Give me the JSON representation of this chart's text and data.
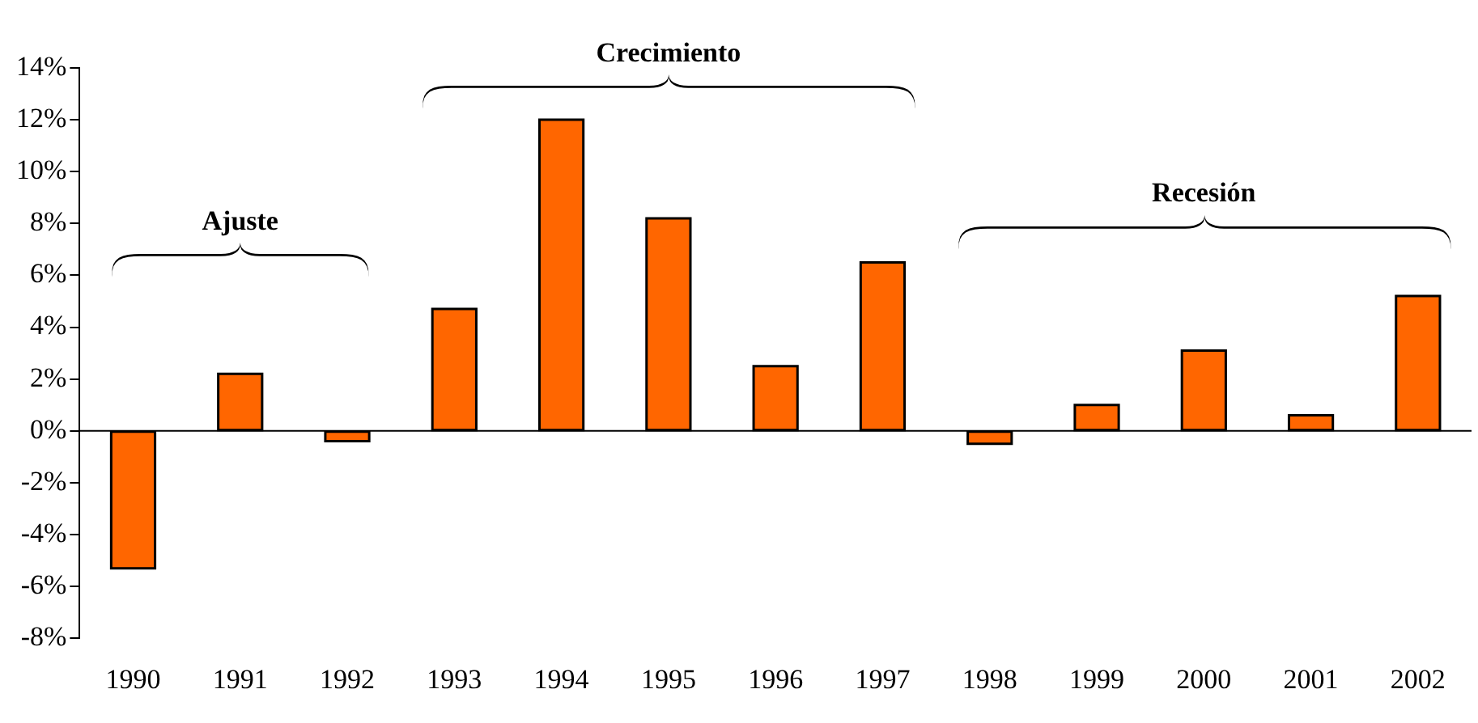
{
  "chart_data": {
    "type": "bar",
    "categories": [
      "1990",
      "1991",
      "1992",
      "1993",
      "1994",
      "1995",
      "1996",
      "1997",
      "1998",
      "1999",
      "2000",
      "2001",
      "2002"
    ],
    "values": [
      -5.3,
      2.2,
      -0.4,
      4.7,
      12.0,
      8.2,
      2.5,
      6.5,
      -0.5,
      1.0,
      3.1,
      0.6,
      5.2
    ],
    "color": "#ff6600",
    "ylim": [
      -8,
      14
    ],
    "yticks": [
      {
        "value": -8,
        "label": "-8%"
      },
      {
        "value": -6,
        "label": "-6%"
      },
      {
        "value": -4,
        "label": "-4%"
      },
      {
        "value": -2,
        "label": "-2%"
      },
      {
        "value": 0,
        "label": "0%"
      },
      {
        "value": 2,
        "label": "2%"
      },
      {
        "value": 4,
        "label": "4%"
      },
      {
        "value": 6,
        "label": "6%"
      },
      {
        "value": 8,
        "label": "8%"
      },
      {
        "value": 10,
        "label": "10%"
      },
      {
        "value": 12,
        "label": "12%"
      },
      {
        "value": 14,
        "label": "14%"
      }
    ],
    "annotations": [
      "Ajuste",
      "Crecimiento",
      "Recesión"
    ],
    "ref_lines": [
      {
        "axis": "y",
        "value": 0,
        "color": "#000000"
      }
    ],
    "grid": false,
    "legend": false
  }
}
